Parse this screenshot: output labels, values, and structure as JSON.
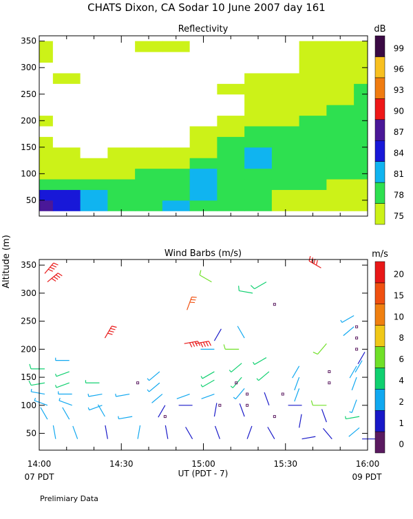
{
  "header": {
    "title": "CHATS Dixon, CA  Sodar  10 June 2007  day 161"
  },
  "y_axis_label": "Altitude (m)",
  "x_axis": {
    "label": "UT  (PDT - 7)",
    "ticks": [
      "14:00",
      "14:30",
      "15:00",
      "15:30",
      "16:00"
    ],
    "start_note": "07 PDT",
    "end_note": "09 PDT",
    "range_minutes": [
      0,
      120
    ]
  },
  "footnote": "Prelimiary Data",
  "colors": {
    "reflectivity_scale": [
      "#ccf218",
      "#2ee050",
      "#10b4f0",
      "#1818d8",
      "#4a1898",
      "#ee1818",
      "#f07c10",
      "#f8c020",
      "#3a0a44"
    ],
    "wind_scale": [
      "#5a1a60",
      "#1818c8",
      "#10a8f0",
      "#10d070",
      "#70e028",
      "#f0c818",
      "#f08010",
      "#f05010",
      "#e81818"
    ],
    "background_ref": "#ffffff"
  },
  "chart_data": [
    {
      "type": "heatmap",
      "title": "Reflectivity",
      "colorbar_unit": "dB",
      "colorbar_ticks": [
        "99",
        "96",
        "93",
        "90",
        "87",
        "84",
        "81",
        "78",
        "75"
      ],
      "x_unit": "minutes after 14:00 UT",
      "y_ticks": [
        50,
        100,
        150,
        200,
        250,
        300,
        350
      ],
      "ylim": [
        20,
        360
      ],
      "x": [
        0,
        10,
        20,
        30,
        40,
        50,
        60,
        70,
        80,
        90,
        100,
        110,
        120
      ],
      "y": [
        40,
        60,
        80,
        100,
        120,
        140,
        160,
        180,
        200,
        220,
        240,
        260,
        280,
        300,
        320,
        340
      ],
      "values_dB": [
        [
          88,
          86,
          83,
          80,
          78,
          81,
          79,
          78,
          78,
          77,
          77,
          76,
          76
        ],
        [
          85,
          84,
          82,
          80,
          78,
          79,
          82,
          79,
          78,
          77,
          77,
          77,
          77
        ],
        [
          80,
          80,
          79,
          78,
          78,
          79,
          81,
          80,
          79,
          78,
          78,
          77,
          77
        ],
        [
          76,
          76,
          77,
          77,
          78,
          79,
          81,
          80,
          79,
          78,
          79,
          79,
          79
        ],
        [
          75,
          75,
          75,
          76,
          76,
          77,
          79,
          80,
          81,
          80,
          79,
          79,
          79
        ],
        [
          75,
          75,
          74,
          75,
          75,
          75,
          77,
          80,
          82,
          80,
          80,
          80,
          80
        ],
        [
          75,
          74,
          74,
          74,
          74,
          74,
          75,
          78,
          80,
          80,
          80,
          80,
          80
        ],
        [
          74,
          74,
          74,
          74,
          74,
          74,
          75,
          76,
          78,
          79,
          80,
          80,
          80
        ],
        [
          75,
          74,
          74,
          74,
          74,
          74,
          74,
          75,
          76,
          77,
          78,
          79,
          80
        ],
        [
          74,
          74,
          74,
          74,
          74,
          74,
          74,
          74,
          75,
          76,
          77,
          78,
          80
        ],
        [
          74,
          74,
          74,
          74,
          74,
          74,
          74,
          74,
          75,
          75,
          76,
          77,
          79
        ],
        [
          74,
          74,
          74,
          74,
          74,
          74,
          74,
          75,
          76,
          75,
          75,
          76,
          78
        ],
        [
          74,
          75,
          74,
          74,
          74,
          74,
          74,
          74,
          75,
          75,
          76,
          75,
          76
        ],
        [
          74,
          74,
          74,
          74,
          74,
          74,
          74,
          74,
          74,
          74,
          75,
          75,
          75
        ],
        [
          75,
          74,
          74,
          74,
          74,
          74,
          74,
          74,
          74,
          74,
          75,
          76,
          75
        ],
        [
          75,
          74,
          74,
          74,
          75,
          75,
          74,
          74,
          74,
          74,
          75,
          77,
          75
        ]
      ]
    },
    {
      "type": "scatter",
      "title": "Wind Barbs (m/s)",
      "colorbar_unit": "m/s",
      "colorbar_ticks": [
        "20",
        "15",
        "10",
        "8",
        "6",
        "4",
        "2",
        "1",
        "0"
      ],
      "x_unit": "minutes after 14:00 UT",
      "y_ticks": [
        50,
        100,
        150,
        200,
        250,
        300,
        350
      ],
      "ylim": [
        20,
        360
      ],
      "barbs": [
        {
          "t": 2,
          "z": 335,
          "spd": 22,
          "dir": 40
        },
        {
          "t": 3,
          "z": 320,
          "spd": 22,
          "dir": 50
        },
        {
          "t": 24,
          "z": 220,
          "spd": 20,
          "dir": 30
        },
        {
          "t": 54,
          "z": 270,
          "spd": 16,
          "dir": 20
        },
        {
          "t": 53,
          "z": 210,
          "spd": 22,
          "dir": 80
        },
        {
          "t": 57,
          "z": 210,
          "spd": 20,
          "dir": 80
        },
        {
          "t": 2,
          "z": 165,
          "spd": 5,
          "dir": 270
        },
        {
          "t": 2,
          "z": 140,
          "spd": 5,
          "dir": 260
        },
        {
          "t": 2,
          "z": 120,
          "spd": 3,
          "dir": 280
        },
        {
          "t": 3,
          "z": 100,
          "spd": 3,
          "dir": 290
        },
        {
          "t": 3,
          "z": 75,
          "spd": 2,
          "dir": 330
        },
        {
          "t": 6,
          "z": 40,
          "spd": 2,
          "dir": 350
        },
        {
          "t": 11,
          "z": 180,
          "spd": 3,
          "dir": 270
        },
        {
          "t": 11,
          "z": 160,
          "spd": 4,
          "dir": 250
        },
        {
          "t": 11,
          "z": 140,
          "spd": 4,
          "dir": 250
        },
        {
          "t": 12,
          "z": 120,
          "spd": 3,
          "dir": 270
        },
        {
          "t": 12,
          "z": 100,
          "spd": 3,
          "dir": 290
        },
        {
          "t": 11,
          "z": 75,
          "spd": 2,
          "dir": 330
        },
        {
          "t": 14,
          "z": 40,
          "spd": 2,
          "dir": 340
        },
        {
          "t": 22,
          "z": 140,
          "spd": 4,
          "dir": 270
        },
        {
          "t": 23,
          "z": 120,
          "spd": 3,
          "dir": 260
        },
        {
          "t": 23,
          "z": 100,
          "spd": 3,
          "dir": 250
        },
        {
          "t": 24,
          "z": 80,
          "spd": 2,
          "dir": 330
        },
        {
          "t": 25,
          "z": 40,
          "spd": 1,
          "dir": 350
        },
        {
          "t": 33,
          "z": 120,
          "spd": 3,
          "dir": 260
        },
        {
          "t": 34,
          "z": 80,
          "spd": 3,
          "dir": 260
        },
        {
          "t": 36,
          "z": 40,
          "spd": 2,
          "dir": 10
        },
        {
          "t": 44,
          "z": 160,
          "spd": 3,
          "dir": 230
        },
        {
          "t": 44,
          "z": 140,
          "spd": 3,
          "dir": 230
        },
        {
          "t": 45,
          "z": 120,
          "spd": 2,
          "dir": 230
        },
        {
          "t": 46,
          "z": 100,
          "spd": 1,
          "dir": 210
        },
        {
          "t": 47,
          "z": 40,
          "spd": 1,
          "dir": 350
        },
        {
          "t": 55,
          "z": 120,
          "spd": 2,
          "dir": 250
        },
        {
          "t": 56,
          "z": 100,
          "spd": 1,
          "dir": 270
        },
        {
          "t": 56,
          "z": 40,
          "spd": 1,
          "dir": 330
        },
        {
          "t": 63,
          "z": 320,
          "spd": 6,
          "dir": 300
        },
        {
          "t": 64,
          "z": 215,
          "spd": 1,
          "dir": 30
        },
        {
          "t": 64,
          "z": 200,
          "spd": 2,
          "dir": 270
        },
        {
          "t": 64,
          "z": 160,
          "spd": 4,
          "dir": 240
        },
        {
          "t": 64,
          "z": 145,
          "spd": 4,
          "dir": 240
        },
        {
          "t": 64,
          "z": 120,
          "spd": 2,
          "dir": 250
        },
        {
          "t": 64,
          "z": 80,
          "spd": 1,
          "dir": 10
        },
        {
          "t": 66,
          "z": 40,
          "spd": 1,
          "dir": 340
        },
        {
          "t": 73,
          "z": 200,
          "spd": 6,
          "dir": 270
        },
        {
          "t": 74,
          "z": 175,
          "spd": 4,
          "dir": 230
        },
        {
          "t": 74,
          "z": 150,
          "spd": 4,
          "dir": 220
        },
        {
          "t": 75,
          "z": 130,
          "spd": 3,
          "dir": 220
        },
        {
          "t": 75,
          "z": 80,
          "spd": 1,
          "dir": 340
        },
        {
          "t": 76,
          "z": 40,
          "spd": 1,
          "dir": 20
        },
        {
          "t": 78,
          "z": 300,
          "spd": 5,
          "dir": 280
        },
        {
          "t": 83,
          "z": 320,
          "spd": 5,
          "dir": 240
        },
        {
          "t": 83,
          "z": 185,
          "spd": 4,
          "dir": 240
        },
        {
          "t": 84,
          "z": 160,
          "spd": 4,
          "dir": 230
        },
        {
          "t": 84,
          "z": 100,
          "spd": 1,
          "dir": 340
        },
        {
          "t": 86,
          "z": 40,
          "spd": 1,
          "dir": 330
        },
        {
          "t": 95,
          "z": 170,
          "spd": 2,
          "dir": 210
        },
        {
          "t": 95,
          "z": 150,
          "spd": 2,
          "dir": 200
        },
        {
          "t": 95,
          "z": 130,
          "spd": 2,
          "dir": 200
        },
        {
          "t": 96,
          "z": 100,
          "spd": 1,
          "dir": 270
        },
        {
          "t": 95,
          "z": 60,
          "spd": 1,
          "dir": 10
        },
        {
          "t": 96,
          "z": 40,
          "spd": 1,
          "dir": 80
        },
        {
          "t": 105,
          "z": 210,
          "spd": 6,
          "dir": 220
        },
        {
          "t": 105,
          "z": 100,
          "spd": 6,
          "dir": 270
        },
        {
          "t": 105,
          "z": 70,
          "spd": 1,
          "dir": 340
        },
        {
          "t": 107,
          "z": 40,
          "spd": 1,
          "dir": 320
        },
        {
          "t": 103,
          "z": 345,
          "spd": 20,
          "dir": 300
        },
        {
          "t": 115,
          "z": 260,
          "spd": 3,
          "dir": 240
        },
        {
          "t": 115,
          "z": 240,
          "spd": 2,
          "dir": 230
        },
        {
          "t": 116,
          "z": 170,
          "spd": 2,
          "dir": 210
        },
        {
          "t": 116,
          "z": 150,
          "spd": 2,
          "dir": 200
        },
        {
          "t": 116,
          "z": 110,
          "spd": 3,
          "dir": 200
        },
        {
          "t": 117,
          "z": 80,
          "spd": 4,
          "dir": 260
        },
        {
          "t": 117,
          "z": 60,
          "spd": 2,
          "dir": 230
        },
        {
          "t": 118,
          "z": 40,
          "spd": 1,
          "dir": 90
        },
        {
          "t": 118,
          "z": 180,
          "spd": 2,
          "dir": 210
        },
        {
          "t": 119,
          "z": 195,
          "spd": 1,
          "dir": 210
        },
        {
          "t": 75,
          "z": 220,
          "spd": 2,
          "dir": 330
        }
      ],
      "calm_points": [
        {
          "t": 36,
          "z": 140
        },
        {
          "t": 46,
          "z": 80
        },
        {
          "t": 66,
          "z": 100
        },
        {
          "t": 76,
          "z": 120
        },
        {
          "t": 72,
          "z": 140
        },
        {
          "t": 86,
          "z": 280
        },
        {
          "t": 86,
          "z": 80
        },
        {
          "t": 89,
          "z": 120
        },
        {
          "t": 106,
          "z": 160
        },
        {
          "t": 106,
          "z": 140
        },
        {
          "t": 116,
          "z": 240
        },
        {
          "t": 116,
          "z": 220
        },
        {
          "t": 116,
          "z": 200
        },
        {
          "t": 76,
          "z": 100
        }
      ]
    }
  ]
}
